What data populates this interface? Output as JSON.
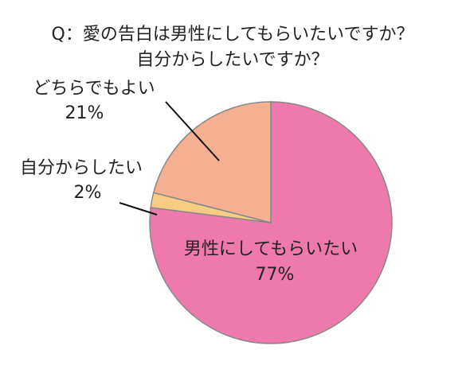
{
  "chart_data": {
    "type": "pie",
    "title": [
      "Q：愛の告白は男性にしてもらいたいですか？",
      "自分からしたいですか？"
    ],
    "categories": [
      "男性にしてもらいたい",
      "自分からしたい",
      "どちらでもよい"
    ],
    "values": [
      77,
      2,
      21
    ],
    "value_labels": [
      "77%",
      "2%",
      "21%"
    ],
    "colors": [
      "#ee7aad",
      "#f9cc86",
      "#f4b090"
    ]
  }
}
